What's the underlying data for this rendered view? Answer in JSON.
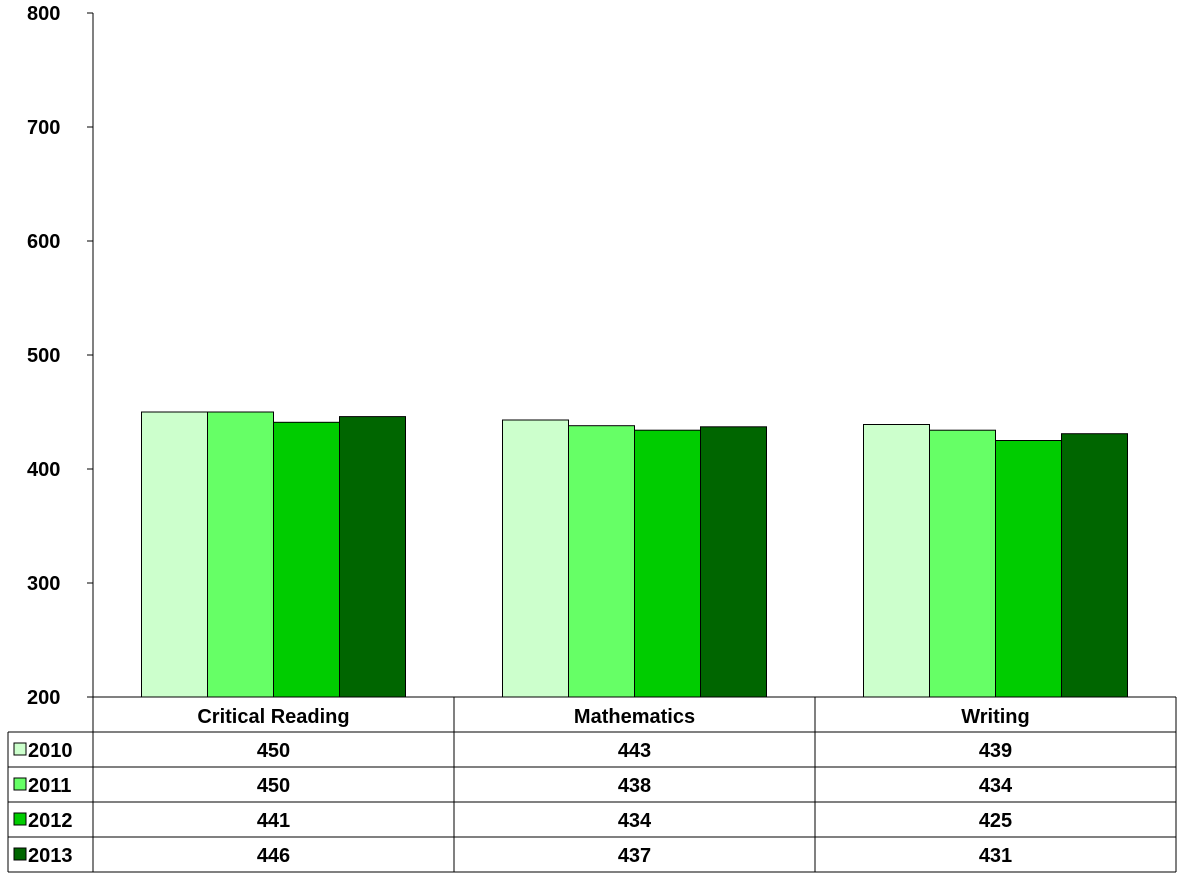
{
  "chart_data": {
    "type": "bar",
    "categories": [
      "Critical Reading",
      "Mathematics",
      "Writing"
    ],
    "series": [
      {
        "name": "2010",
        "color": "#CCFFCC",
        "values": [
          450,
          443,
          439
        ]
      },
      {
        "name": "2011",
        "color": "#66FF66",
        "values": [
          450,
          438,
          434
        ]
      },
      {
        "name": "2012",
        "color": "#00CC00",
        "values": [
          441,
          434,
          425
        ]
      },
      {
        "name": "2013",
        "color": "#006600",
        "values": [
          446,
          437,
          431
        ]
      }
    ],
    "ylim": [
      200,
      800
    ],
    "yticks": [
      "200",
      "300",
      "400",
      "500",
      "600",
      "700",
      "800"
    ],
    "grid": false,
    "legend": "data-table-left",
    "data_table": true
  }
}
